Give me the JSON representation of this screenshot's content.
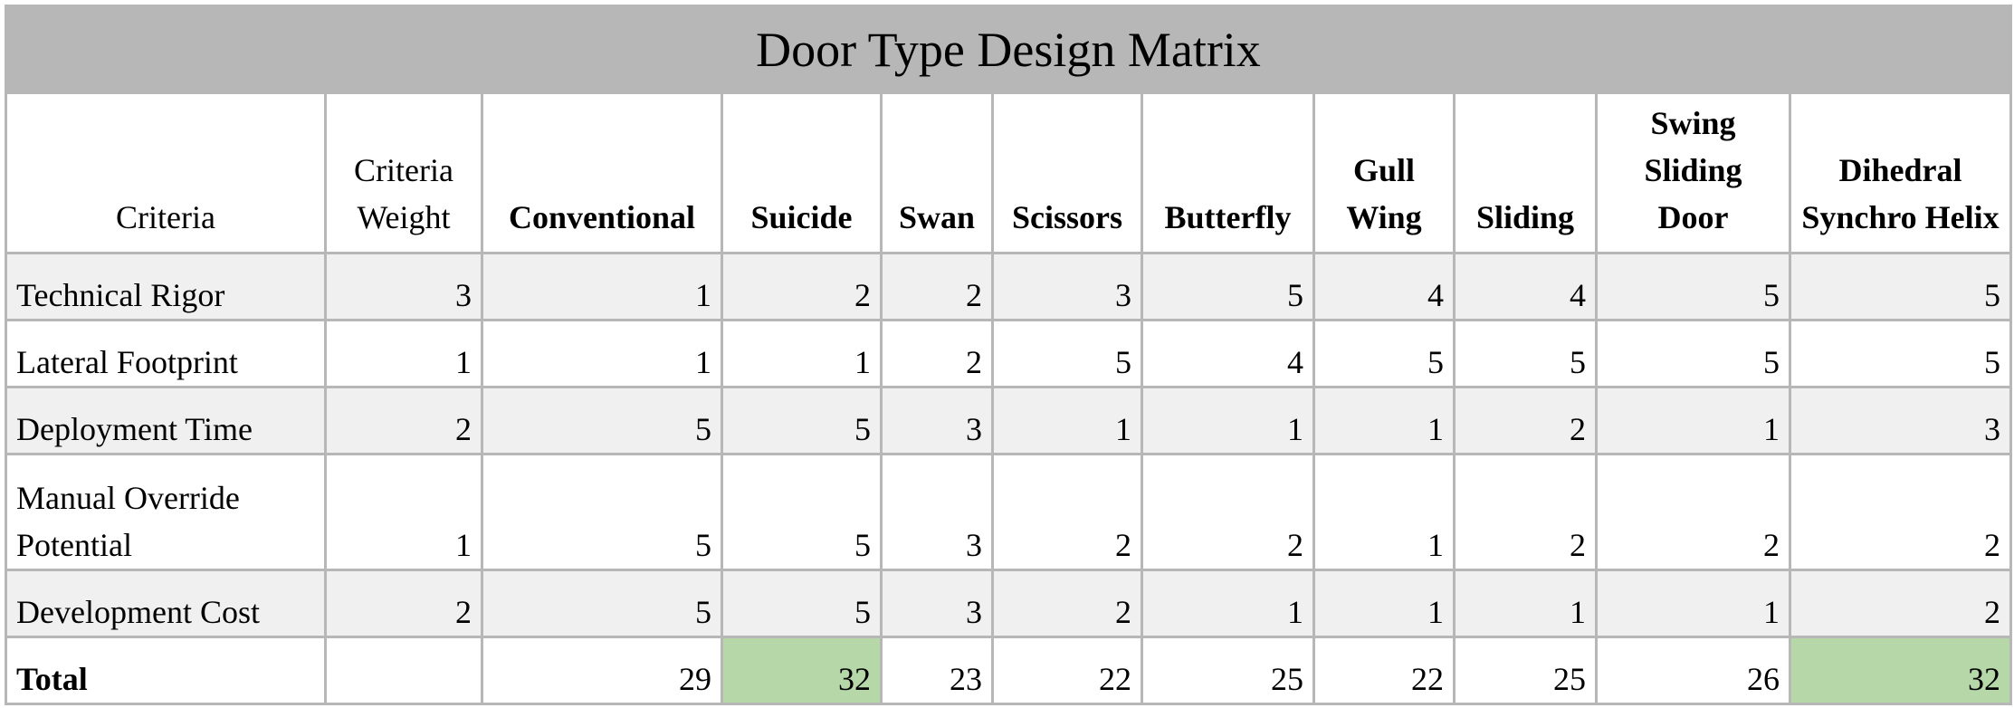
{
  "title": "Door Type Design Matrix",
  "headers": {
    "criteria": "Criteria",
    "criteria_weight": "Criteria Weight",
    "options": [
      "Conventional",
      "Suicide",
      "Swan",
      "Scissors",
      "Butterfly",
      "Gull Wing",
      "Sliding",
      "Swing Sliding Door",
      "Dihedral Synchro Helix"
    ]
  },
  "rows": [
    {
      "criterion": "Technical Rigor",
      "weight": "3",
      "scores": [
        "1",
        "2",
        "2",
        "3",
        "5",
        "4",
        "4",
        "5",
        "5"
      ]
    },
    {
      "criterion": "Lateral Footprint",
      "weight": "1",
      "scores": [
        "1",
        "1",
        "2",
        "5",
        "4",
        "5",
        "5",
        "5",
        "5"
      ]
    },
    {
      "criterion": "Deployment Time",
      "weight": "2",
      "scores": [
        "5",
        "5",
        "3",
        "1",
        "1",
        "1",
        "2",
        "1",
        "3"
      ]
    },
    {
      "criterion": "Manual Override Potential",
      "weight": "1",
      "scores": [
        "5",
        "5",
        "3",
        "2",
        "2",
        "1",
        "2",
        "2",
        "2"
      ]
    },
    {
      "criterion": "Development Cost",
      "weight": "2",
      "scores": [
        "5",
        "5",
        "3",
        "2",
        "1",
        "1",
        "1",
        "1",
        "2"
      ]
    }
  ],
  "total": {
    "label": "Total",
    "values": [
      "29",
      "32",
      "23",
      "22",
      "25",
      "22",
      "25",
      "26",
      "32"
    ]
  },
  "colors": {
    "title_bg": "#b7b7b7",
    "grid": "#b7b7b7",
    "shaded_row": "#f0f0f0",
    "highlight": "#b6d7a8"
  }
}
